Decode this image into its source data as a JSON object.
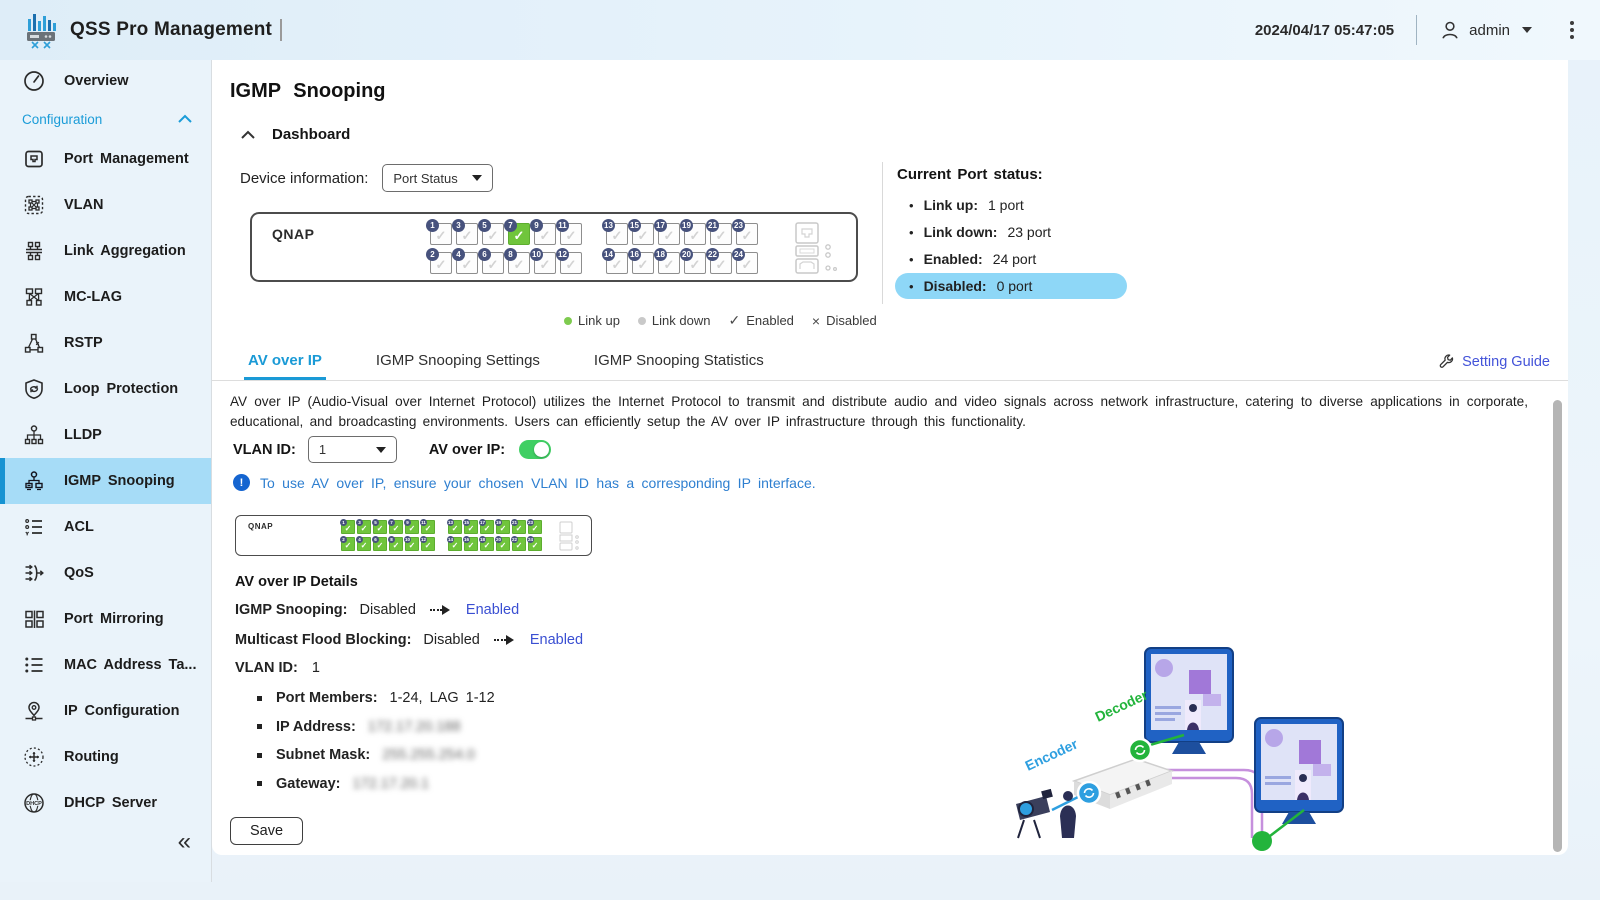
{
  "header": {
    "app_title": "QSS Pro Management",
    "datetime": "2024/04/17 05:47:05",
    "username": "admin"
  },
  "sidebar": {
    "overview_label": "Overview",
    "section_label": "Configuration",
    "collapse_glyph": "«",
    "items": [
      {
        "icon": "port-management-icon",
        "label": "Port Management"
      },
      {
        "icon": "vlan-icon",
        "label": "VLAN"
      },
      {
        "icon": "link-aggregation-icon",
        "label": "Link Aggregation"
      },
      {
        "icon": "mc-lag-icon",
        "label": "MC-LAG"
      },
      {
        "icon": "rstp-icon",
        "label": "RSTP"
      },
      {
        "icon": "loop-protection-icon",
        "label": "Loop Protection"
      },
      {
        "icon": "lldp-icon",
        "label": "LLDP"
      },
      {
        "icon": "igmp-snooping-icon",
        "label": "IGMP Snooping",
        "selected": true
      },
      {
        "icon": "acl-icon",
        "label": "ACL"
      },
      {
        "icon": "qos-icon",
        "label": "QoS"
      },
      {
        "icon": "port-mirroring-icon",
        "label": "Port Mirroring"
      },
      {
        "icon": "mac-address-table-icon",
        "label": "MAC Address Ta..."
      },
      {
        "icon": "ip-configuration-icon",
        "label": "IP Configuration"
      },
      {
        "icon": "routing-icon",
        "label": "Routing"
      },
      {
        "icon": "dhcp-server-icon",
        "label": "DHCP Server"
      }
    ]
  },
  "main": {
    "page_title": "IGMP Snooping",
    "dashboard_label": "Dashboard",
    "device_info_label": "Device information:",
    "device_dropdown_value": "Port Status",
    "brand": "QNAP",
    "legend": [
      {
        "marker": "green-dot",
        "label": "Link up"
      },
      {
        "marker": "grey-dot",
        "label": "Link down"
      },
      {
        "marker": "check",
        "glyph": "✓",
        "label": "Enabled"
      },
      {
        "marker": "cross",
        "glyph": "×",
        "label": "Disabled"
      }
    ],
    "port_status": {
      "title": "Current Port status:",
      "bullet": "•",
      "items": [
        {
          "label": "Link up:",
          "value": "1 port"
        },
        {
          "label": "Link down:",
          "value": "23 port"
        },
        {
          "label": "Enabled:",
          "value": "24 port"
        },
        {
          "label": "Disabled:",
          "value": "0 port",
          "highlighted": true
        }
      ]
    },
    "tabs": [
      {
        "label": "AV over IP",
        "active": true
      },
      {
        "label": "IGMP Snooping Settings",
        "active": false
      },
      {
        "label": "IGMP Snooping Statistics",
        "active": false
      }
    ],
    "setting_guide_label": "Setting Guide"
  },
  "device": {
    "top_row": [
      1,
      3,
      5,
      7,
      9,
      11,
      13,
      15,
      17,
      19,
      21,
      23
    ],
    "bottom_row": [
      2,
      4,
      6,
      8,
      10,
      12,
      14,
      16,
      18,
      20,
      22,
      24
    ],
    "link_up_port": 7
  },
  "av": {
    "description": "AV over IP (Audio-Visual over Internet Protocol) utilizes the Internet Protocol to transmit and distribute audio and video signals across network infrastructure, catering to diverse applications in corporate, educational, and broadcasting environments. Users can efficiently setup the AV over IP infrastructure through this functionality.",
    "vlan_label": "VLAN ID:",
    "vlan_value": "1",
    "toggle_label": "AV over IP:",
    "toggle_state": "on",
    "note": "To use AV over IP, ensure your chosen VLAN ID has a corresponding IP interface.",
    "note_icon_glyph": "!",
    "details_title": "AV over IP Details",
    "transitions": [
      {
        "label": "IGMP Snooping:",
        "from": "Disabled",
        "to": "Enabled"
      },
      {
        "label": "Multicast Flood Blocking:",
        "from": "Disabled",
        "to": "Enabled"
      }
    ],
    "vlan_detail_label": "VLAN ID:",
    "vlan_detail_value": "1",
    "bullets": [
      {
        "label": "Port Members:",
        "value": "1-24, LAG 1-12",
        "redacted": false
      },
      {
        "label": "IP Address:",
        "value": "172.17.20.188",
        "redacted": true
      },
      {
        "label": "Subnet Mask:",
        "value": "255.255.254.0",
        "redacted": true
      },
      {
        "label": "Gateway:",
        "value": "172.17.20.1",
        "redacted": true
      }
    ],
    "save_label": "Save"
  },
  "illustration": {
    "encoder_label": "Encoder",
    "decoder_label": "Decoder"
  },
  "colors": {
    "accent": "#1a9ad6",
    "selected_bg": "#a6dcf7",
    "highlight_pill": "#8ed7f7",
    "link_indigo": "#4353d9",
    "note_blue": "#2e7fd0",
    "toggle_green": "#3fcf63",
    "port_green": "#70c53c",
    "badge_navy": "#47527d"
  }
}
